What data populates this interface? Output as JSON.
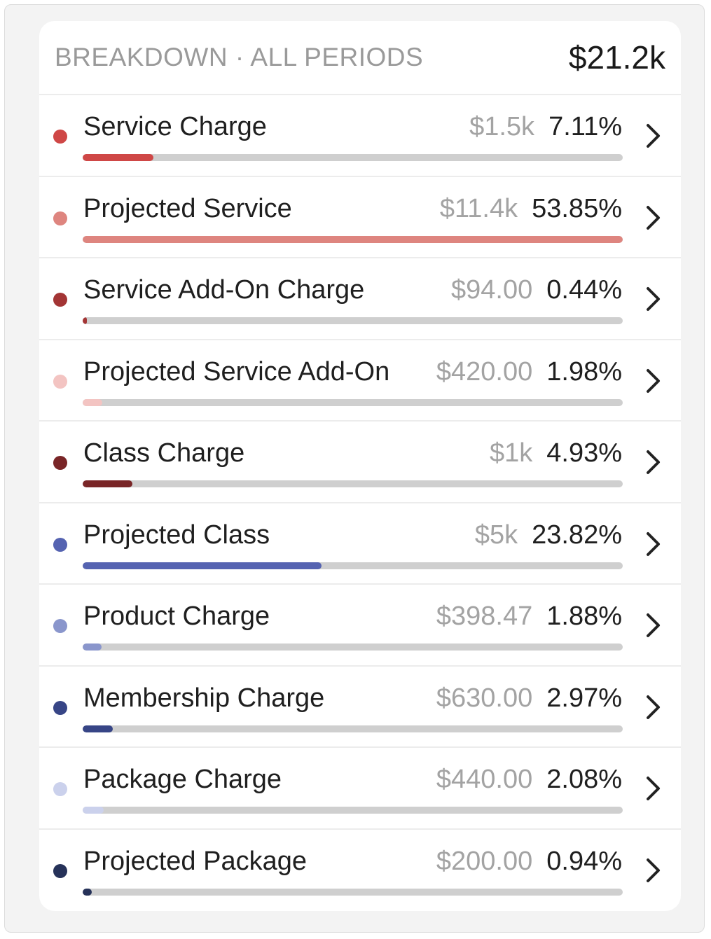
{
  "header": {
    "title": "BREAKDOWN · ALL PERIODS",
    "total": "$21.2k"
  },
  "rows": [
    {
      "label": "Service Charge",
      "amount": "$1.5k",
      "percent": "7.11%",
      "fraction": 0.1311,
      "color": "#cf4746"
    },
    {
      "label": "Projected Service",
      "amount": "$11.4k",
      "percent": "53.85%",
      "fraction": 1.0,
      "color": "#de857f"
    },
    {
      "label": "Service Add-On Charge",
      "amount": "$94.00",
      "percent": "0.44%",
      "fraction": 0.0082,
      "color": "#a33535"
    },
    {
      "label": "Projected Service Add-On",
      "amount": "$420.00",
      "percent": "1.98%",
      "fraction": 0.0368,
      "color": "#f3c4c2"
    },
    {
      "label": "Class Charge",
      "amount": "$1k",
      "percent": "4.93%",
      "fraction": 0.0916,
      "color": "#792527"
    },
    {
      "label": "Projected Class",
      "amount": "$5k",
      "percent": "23.82%",
      "fraction": 0.4423,
      "color": "#5563b1"
    },
    {
      "label": "Product Charge",
      "amount": "$398.47",
      "percent": "1.88%",
      "fraction": 0.0349,
      "color": "#8a96cc"
    },
    {
      "label": "Membership Charge",
      "amount": "$630.00",
      "percent": "2.97%",
      "fraction": 0.0552,
      "color": "#374586"
    },
    {
      "label": "Package Charge",
      "amount": "$440.00",
      "percent": "2.08%",
      "fraction": 0.0386,
      "color": "#cbd1ec"
    },
    {
      "label": "Projected Package",
      "amount": "$200.00",
      "percent": "0.94%",
      "fraction": 0.0175,
      "color": "#263259"
    }
  ],
  "icons": {
    "row_action": "chevron-right-icon"
  }
}
